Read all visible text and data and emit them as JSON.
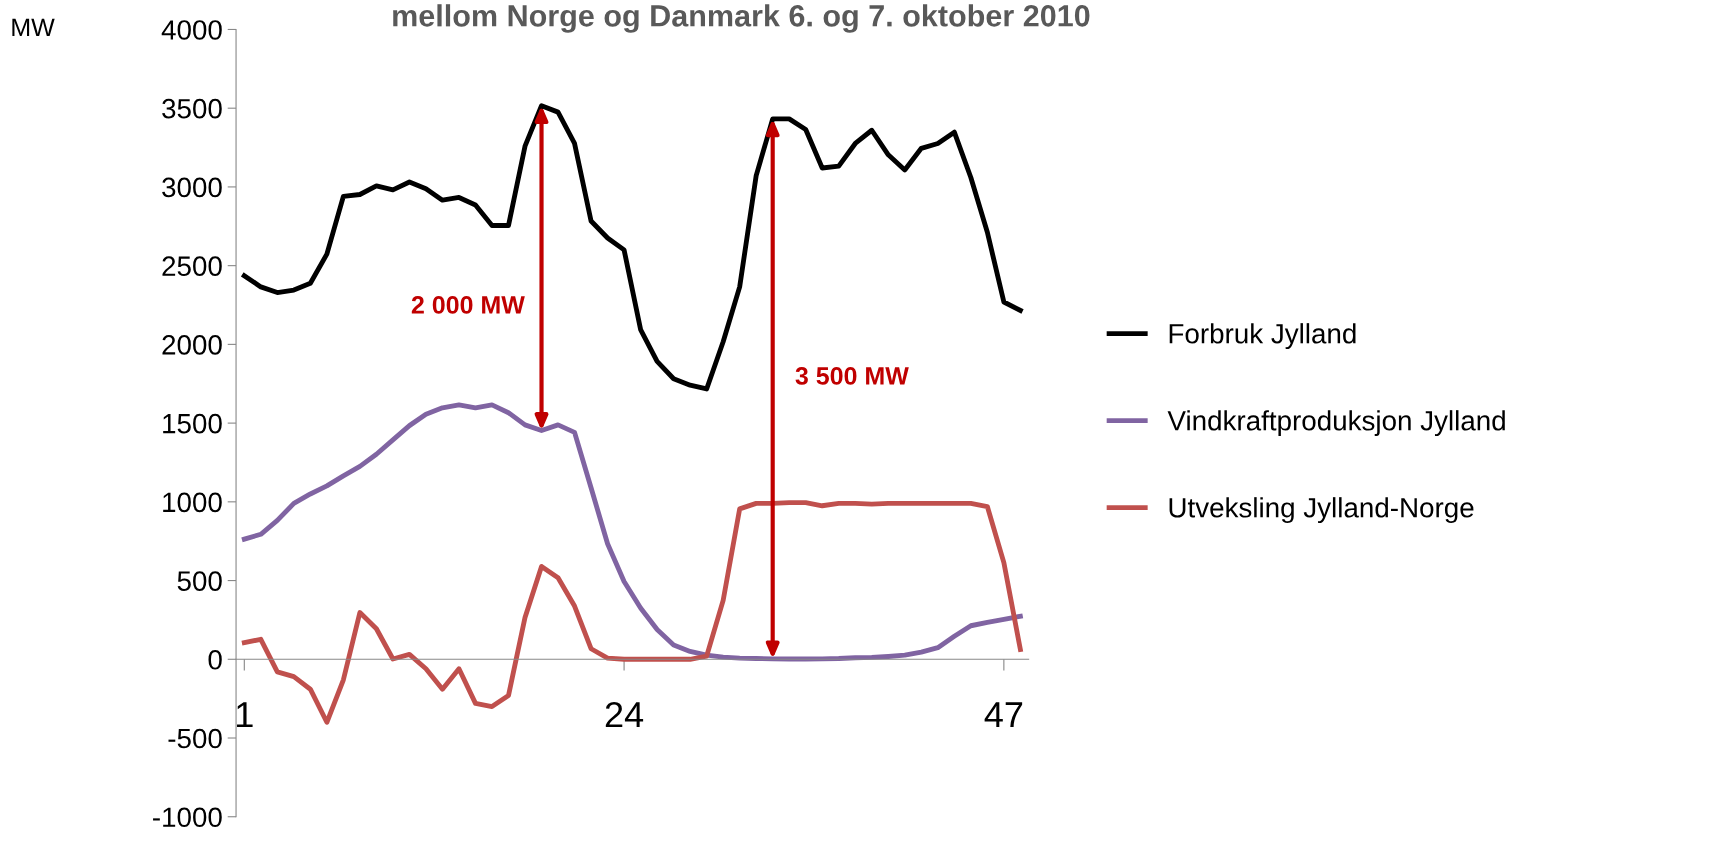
{
  "chart_data": {
    "type": "line",
    "title": "mellom Norge og Danmark 6. og 7. oktober 2010",
    "ylabel": "MW",
    "x": [
      1,
      2,
      3,
      4,
      5,
      6,
      7,
      8,
      9,
      10,
      11,
      12,
      13,
      14,
      15,
      16,
      17,
      18,
      19,
      20,
      21,
      22,
      23,
      24,
      25,
      26,
      27,
      28,
      29,
      30,
      31,
      32,
      33,
      34,
      35,
      36,
      37,
      38,
      39,
      40,
      41,
      42,
      43,
      44,
      45,
      46,
      47,
      48
    ],
    "xlim": [
      0.5,
      48.5
    ],
    "xticks": [
      1,
      24,
      47
    ],
    "ylim": [
      -1000,
      4000
    ],
    "yticks": [
      -1000,
      -500,
      0,
      500,
      1000,
      1500,
      2000,
      2500,
      3000,
      3500,
      4000
    ],
    "series": [
      {
        "name": "Forbruk Jylland",
        "color": "#000000",
        "values": [
          2436,
          2365,
          2329,
          2345,
          2388,
          2573,
          2940,
          2952,
          3007,
          2981,
          3031,
          2988,
          2916,
          2933,
          2885,
          2755,
          2755,
          3259,
          3516,
          3475,
          3276,
          2784,
          2676,
          2600,
          2094,
          1892,
          1782,
          1741,
          1717,
          2017,
          2365,
          3072,
          3432,
          3432,
          3365,
          3120,
          3132,
          3276,
          3360,
          3204,
          3108,
          3245,
          3276,
          3348,
          3060,
          2712,
          2269,
          2216
        ]
      },
      {
        "name": "Vindkraftproduksjon Jylland",
        "color": "#8064a2",
        "values": [
          763,
          794,
          882,
          990,
          1050,
          1101,
          1165,
          1225,
          1302,
          1393,
          1484,
          1556,
          1597,
          1616,
          1597,
          1616,
          1566,
          1489,
          1453,
          1489,
          1441,
          1089,
          734,
          494,
          326,
          189,
          91,
          50,
          26,
          14,
          7,
          5,
          3,
          2,
          2,
          3,
          5,
          10,
          12,
          18,
          26,
          46,
          74,
          146,
          213,
          235,
          254,
          273
        ]
      },
      {
        "name": "Utveksling Jylland-Norge",
        "color": "#c0504d",
        "values": [
          106,
          127,
          -80,
          -110,
          -190,
          -400,
          -130,
          297,
          194,
          2,
          31,
          -60,
          -190,
          -60,
          -280,
          -300,
          -230,
          266,
          590,
          518,
          338,
          67,
          7,
          0,
          0,
          0,
          0,
          0,
          20,
          374,
          955,
          990,
          990,
          995,
          995,
          975,
          990,
          990,
          985,
          990,
          990,
          990,
          990,
          990,
          990,
          970,
          614,
          62
        ]
      }
    ],
    "annotations": [
      "2 000 MW",
      "3 500 MW"
    ],
    "legend": "right",
    "grid": false,
    "marker": "none",
    "line_style": "solid"
  }
}
